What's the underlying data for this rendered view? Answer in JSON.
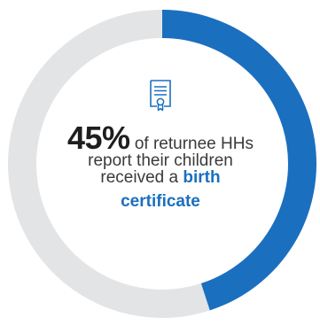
{
  "chart_data": {
    "type": "pie",
    "variant": "donut",
    "values": [
      45,
      55
    ],
    "colors": [
      "#1b6fbf",
      "#e3e4e6"
    ],
    "start": "top",
    "direction": "clockwise"
  },
  "stat": {
    "value": "45%",
    "text_1": " of returnee HHs",
    "text_2": "report their children",
    "text_3": "received a ",
    "highlight_1": "birth",
    "highlight_2": "certificate"
  },
  "icon": "certificate-document-icon",
  "colors": {
    "accent": "#1b6fbf",
    "track": "#e3e4e6",
    "text": "#3a3a3a"
  }
}
